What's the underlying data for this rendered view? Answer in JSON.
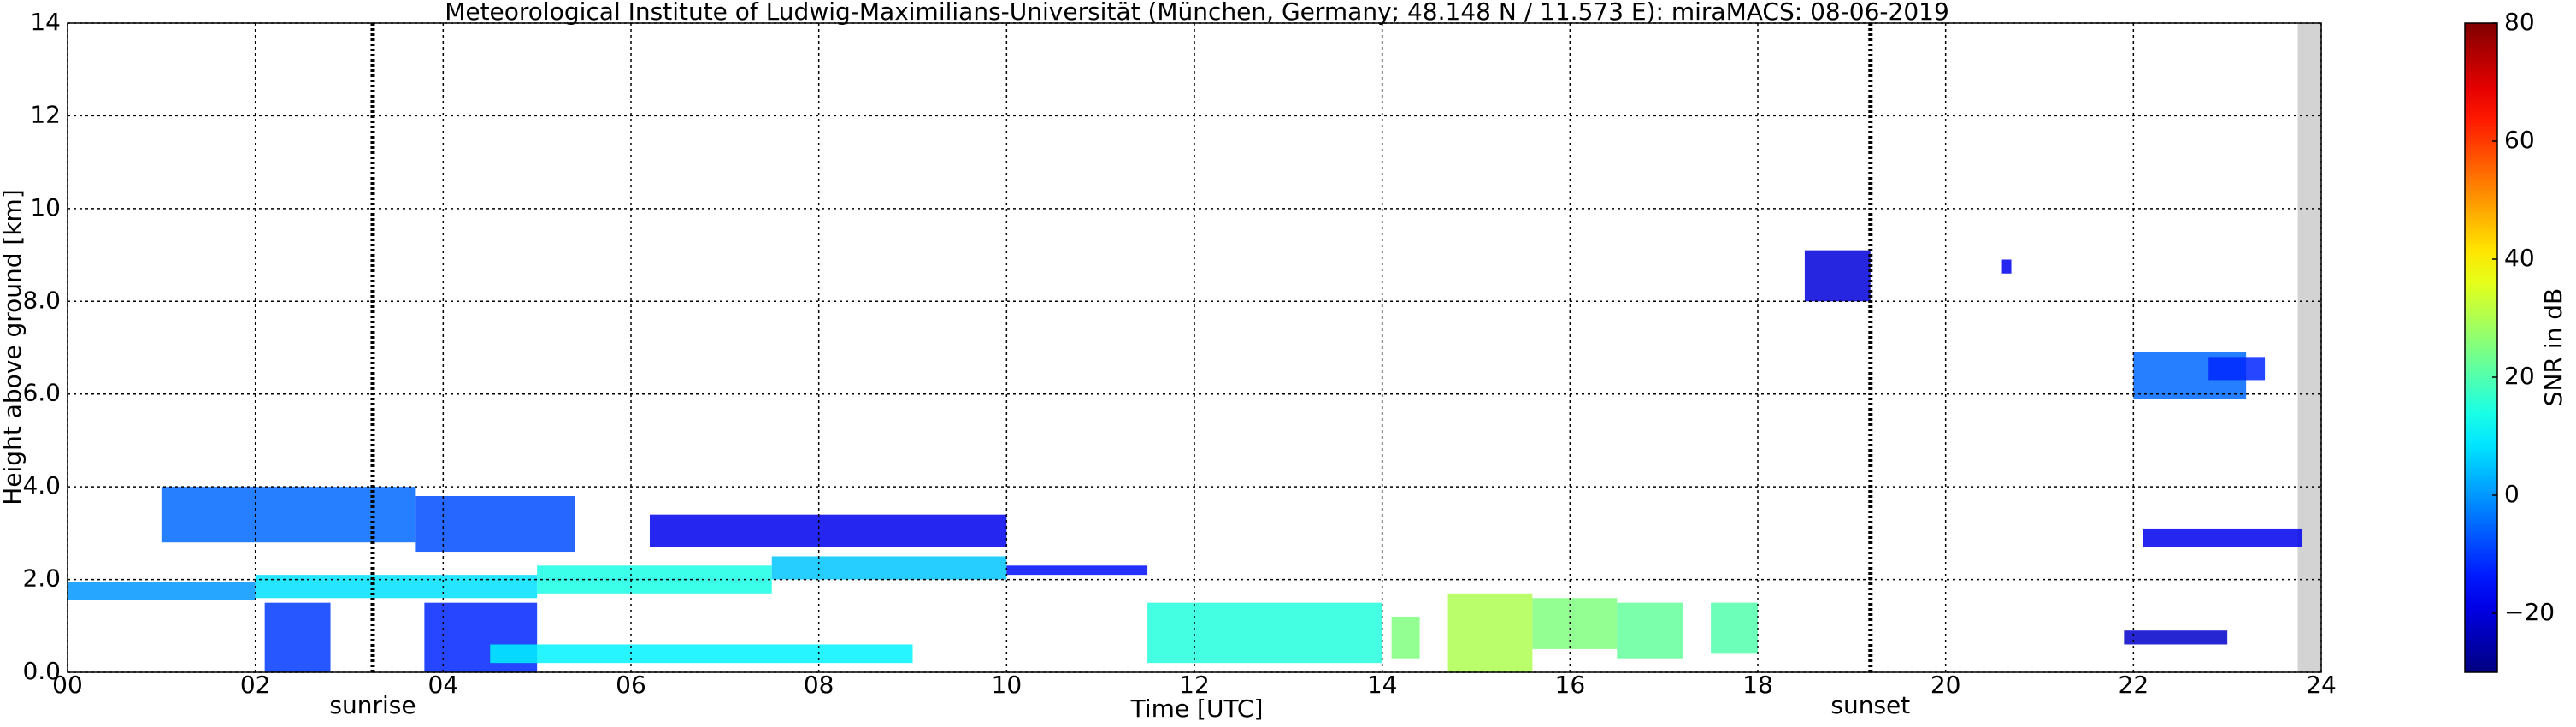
{
  "chart_data": {
    "type": "time-height",
    "title": "Meteorological Institute of Ludwig-Maximilians-Universität (München, Germany; 48.148 N / 11.573 E):    miraMACS: 08-06-2019",
    "x_label": "Time [UTC]",
    "y_label": "Height above ground [km]",
    "colorbar_label": "SNR in dB",
    "colormap": "jet",
    "grid": true,
    "xlim": [
      0,
      24
    ],
    "ylim": [
      0,
      14
    ],
    "clim": [
      -30,
      80
    ],
    "xticks": [
      {
        "value": 0,
        "label": "00"
      },
      {
        "value": 2,
        "label": "02"
      },
      {
        "value": 4,
        "label": "04"
      },
      {
        "value": 6,
        "label": "06"
      },
      {
        "value": 8,
        "label": "08"
      },
      10,
      12,
      14,
      16,
      18,
      20,
      22,
      24
    ],
    "yticks": [
      {
        "value": 0,
        "label": "0.0"
      },
      {
        "value": 2,
        "label": "2.0"
      },
      {
        "value": 4,
        "label": "4.0"
      },
      {
        "value": 6,
        "label": "6.0"
      },
      {
        "value": 8,
        "label": "8.0"
      },
      {
        "value": 10,
        "label": "10"
      },
      {
        "value": 12,
        "label": "12"
      },
      {
        "value": 14,
        "label": "14"
      }
    ],
    "cticks": [
      {
        "value": -20,
        "label": "−20"
      },
      0,
      20,
      40,
      60,
      80
    ],
    "no_data": [
      23.75,
      24
    ],
    "annotations": [
      {
        "text": "sunrise",
        "x": 3.25
      },
      {
        "text": "sunset",
        "x": 19.2
      }
    ],
    "echoes": [
      {
        "t0": 0.0,
        "t1": 2.0,
        "h0": 1.55,
        "h1": 1.95,
        "snr": 0
      },
      {
        "t0": 2.0,
        "t1": 5.0,
        "h0": 1.6,
        "h1": 2.1,
        "snr": 8
      },
      {
        "t0": 5.0,
        "t1": 7.5,
        "h0": 1.7,
        "h1": 2.3,
        "snr": 14
      },
      {
        "t0": 7.5,
        "t1": 10.0,
        "h0": 2.0,
        "h1": 2.5,
        "snr": 5
      },
      {
        "t0": 10.0,
        "t1": 11.5,
        "h0": 2.1,
        "h1": 2.3,
        "snr": -15
      },
      {
        "t0": 1.0,
        "t1": 3.7,
        "h0": 2.8,
        "h1": 4.0,
        "snr": -5
      },
      {
        "t0": 3.7,
        "t1": 5.4,
        "h0": 2.6,
        "h1": 3.8,
        "snr": -8
      },
      {
        "t0": 6.2,
        "t1": 10.0,
        "h0": 2.7,
        "h1": 3.4,
        "snr": -18
      },
      {
        "t0": 2.1,
        "t1": 2.8,
        "h0": 0.0,
        "h1": 1.5,
        "snr": -10
      },
      {
        "t0": 3.8,
        "t1": 5.0,
        "h0": 0.0,
        "h1": 1.5,
        "snr": -12
      },
      {
        "t0": 4.5,
        "t1": 9.0,
        "h0": 0.2,
        "h1": 0.6,
        "snr": 10
      },
      {
        "t0": 11.5,
        "t1": 14.0,
        "h0": 0.2,
        "h1": 1.5,
        "snr": 15
      },
      {
        "t0": 14.1,
        "t1": 14.4,
        "h0": 0.3,
        "h1": 1.2,
        "snr": 25
      },
      {
        "t0": 14.7,
        "t1": 15.6,
        "h0": 0.0,
        "h1": 1.7,
        "snr": 30
      },
      {
        "t0": 15.6,
        "t1": 16.5,
        "h0": 0.5,
        "h1": 1.6,
        "snr": 25
      },
      {
        "t0": 16.5,
        "t1": 17.2,
        "h0": 0.3,
        "h1": 1.5,
        "snr": 22
      },
      {
        "t0": 17.5,
        "t1": 18.0,
        "h0": 0.4,
        "h1": 1.5,
        "snr": 20
      },
      {
        "t0": 18.5,
        "t1": 19.2,
        "h0": 8.0,
        "h1": 9.1,
        "snr": -20
      },
      {
        "t0": 20.6,
        "t1": 20.7,
        "h0": 8.6,
        "h1": 8.9,
        "snr": -18
      },
      {
        "t0": 22.0,
        "t1": 23.2,
        "h0": 5.9,
        "h1": 6.9,
        "snr": -5
      },
      {
        "t0": 22.8,
        "t1": 23.4,
        "h0": 6.3,
        "h1": 6.8,
        "snr": -12
      },
      {
        "t0": 22.1,
        "t1": 23.8,
        "h0": 2.7,
        "h1": 3.1,
        "snr": -18
      },
      {
        "t0": 21.9,
        "t1": 23.0,
        "h0": 0.6,
        "h1": 0.9,
        "snr": -22
      }
    ]
  }
}
